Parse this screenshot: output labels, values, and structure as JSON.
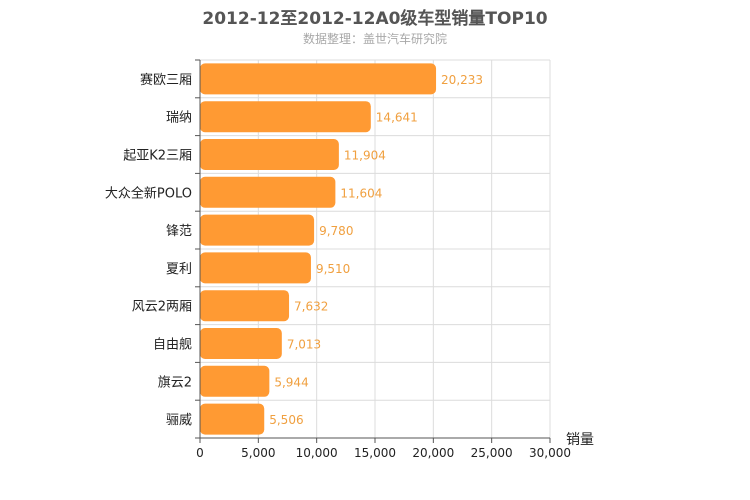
{
  "chart_data": {
    "type": "bar",
    "orientation": "horizontal",
    "title": "2012-12至2012-12A0级车型销量TOP10",
    "subtitle": "数据整理：盖世汽车研究院",
    "xlabel": "销量",
    "ylabel": "",
    "categories": [
      "赛欧三厢",
      "瑞纳",
      "起亚K2三厢",
      "大众全新POLO",
      "锋范",
      "夏利",
      "风云2两厢",
      "自由舰",
      "旗云2",
      "骊威"
    ],
    "values": [
      20233,
      14641,
      11904,
      11604,
      9780,
      9510,
      7632,
      7013,
      5944,
      5506
    ],
    "value_labels": [
      "20,233",
      "14,641",
      "11,904",
      "11,604",
      "9,780",
      "9,510",
      "7,632",
      "7,013",
      "5,944",
      "5,506"
    ],
    "xlim": [
      0,
      30000
    ],
    "xticks": [
      0,
      5000,
      10000,
      15000,
      20000,
      25000,
      30000
    ],
    "xtick_labels": [
      "0",
      "5,000",
      "10,000",
      "15,000",
      "20,000",
      "25,000",
      "30,000"
    ],
    "grid": true,
    "legend": "none",
    "colors": {
      "bar": "#ff9a33",
      "grid": "#dcdcdc",
      "axis": "#555555",
      "data_label": "#f0a040"
    }
  }
}
